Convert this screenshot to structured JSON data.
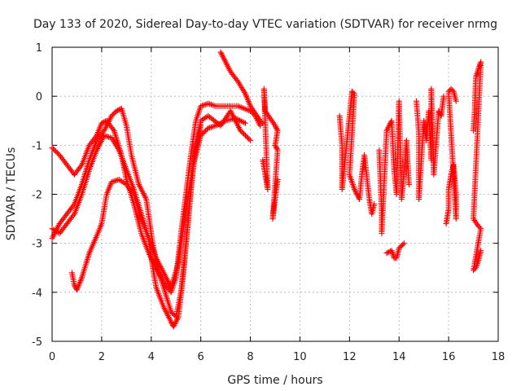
{
  "chart_data": {
    "type": "scatter",
    "title": "Day 133 of 2020, Sidereal Day-to-day VTEC variation (SDTVAR) for receiver nrmg",
    "xlabel": "GPS time / hours",
    "ylabel": "SDTVAR / TECUs",
    "xlim": [
      0,
      18
    ],
    "ylim": [
      -5,
      1
    ],
    "xticks": [
      "0",
      "2",
      "4",
      "6",
      "8",
      "10",
      "12",
      "14",
      "16",
      "18"
    ],
    "yticks": [
      "-5",
      "-4",
      "-3",
      "-2",
      "-1",
      "0",
      "1"
    ],
    "grid": true,
    "marker": "+",
    "color": "#ff0000",
    "series": [
      {
        "name": "track-1",
        "points": [
          [
            0,
            -1.05
          ],
          [
            0.3,
            -1.2
          ],
          [
            0.6,
            -1.4
          ],
          [
            0.9,
            -1.6
          ],
          [
            1.2,
            -1.4
          ],
          [
            1.5,
            -1.0
          ],
          [
            1.8,
            -0.8
          ],
          [
            2.0,
            -0.55
          ],
          [
            2.2,
            -0.5
          ],
          [
            2.5,
            -0.7
          ],
          [
            2.8,
            -1.2
          ],
          [
            3.0,
            -1.7
          ],
          [
            3.3,
            -2.2
          ],
          [
            3.6,
            -2.8
          ],
          [
            3.9,
            -3.2
          ],
          [
            4.2,
            -3.5
          ],
          [
            4.5,
            -3.8
          ],
          [
            4.8,
            -4.0
          ],
          [
            5.0,
            -3.7
          ],
          [
            5.2,
            -2.8
          ],
          [
            5.4,
            -2.0
          ],
          [
            5.6,
            -1.2
          ],
          [
            5.8,
            -0.5
          ],
          [
            6.0,
            -0.2
          ],
          [
            6.3,
            -0.15
          ],
          [
            6.6,
            -0.2
          ],
          [
            7.0,
            -0.2
          ],
          [
            7.5,
            -0.2
          ],
          [
            8.0,
            -0.3
          ],
          [
            8.2,
            -0.4
          ],
          [
            8.4,
            -0.6
          ]
        ]
      },
      {
        "name": "track-2",
        "points": [
          [
            0,
            -2.9
          ],
          [
            0.3,
            -2.6
          ],
          [
            0.6,
            -2.4
          ],
          [
            0.9,
            -2.2
          ],
          [
            1.2,
            -1.8
          ],
          [
            1.5,
            -1.3
          ],
          [
            1.8,
            -0.9
          ],
          [
            2.1,
            -0.7
          ],
          [
            2.4,
            -0.4
          ],
          [
            2.6,
            -0.3
          ],
          [
            2.8,
            -0.25
          ],
          [
            3.0,
            -0.6
          ],
          [
            3.2,
            -1.2
          ],
          [
            3.5,
            -1.8
          ],
          [
            3.8,
            -2.1
          ],
          [
            4.0,
            -2.8
          ],
          [
            4.2,
            -3.4
          ],
          [
            4.5,
            -3.9
          ],
          [
            4.8,
            -4.4
          ],
          [
            5.0,
            -4.5
          ],
          [
            5.2,
            -4.0
          ],
          [
            5.4,
            -3.0
          ],
          [
            5.6,
            -1.9
          ],
          [
            5.8,
            -1.0
          ],
          [
            6.0,
            -0.5
          ],
          [
            6.3,
            -0.4
          ],
          [
            6.8,
            -0.6
          ],
          [
            7.2,
            -0.3
          ],
          [
            7.6,
            -0.7
          ],
          [
            8.0,
            -0.9
          ]
        ]
      },
      {
        "name": "track-3",
        "points": [
          [
            0,
            -2.7
          ],
          [
            0.3,
            -2.8
          ],
          [
            0.6,
            -2.6
          ],
          [
            0.9,
            -2.4
          ],
          [
            1.2,
            -2.0
          ],
          [
            1.5,
            -1.5
          ],
          [
            1.8,
            -1.1
          ],
          [
            2.1,
            -0.8
          ],
          [
            2.4,
            -0.85
          ],
          [
            2.7,
            -1.1
          ],
          [
            3.0,
            -1.5
          ],
          [
            3.3,
            -1.9
          ],
          [
            3.6,
            -2.4
          ],
          [
            3.9,
            -2.9
          ],
          [
            4.2,
            -3.3
          ],
          [
            4.5,
            -3.6
          ],
          [
            4.8,
            -3.9
          ],
          [
            5.1,
            -3.4
          ],
          [
            5.4,
            -2.3
          ],
          [
            5.7,
            -1.4
          ],
          [
            6.0,
            -0.8
          ],
          [
            6.3,
            -0.65
          ],
          [
            6.6,
            -0.6
          ],
          [
            7.0,
            -0.5
          ],
          [
            7.4,
            -0.45
          ],
          [
            7.8,
            -0.55
          ]
        ]
      },
      {
        "name": "track-4",
        "points": [
          [
            0.8,
            -3.6
          ],
          [
            0.9,
            -3.85
          ],
          [
            1.0,
            -3.95
          ],
          [
            1.2,
            -3.7
          ],
          [
            1.5,
            -3.2
          ],
          [
            1.8,
            -2.85
          ],
          [
            2.0,
            -2.6
          ],
          [
            2.2,
            -2.0
          ],
          [
            2.4,
            -1.75
          ],
          [
            2.7,
            -1.7
          ],
          [
            3.0,
            -1.8
          ],
          [
            3.3,
            -2.0
          ],
          [
            3.6,
            -2.5
          ],
          [
            3.9,
            -2.9
          ],
          [
            4.0,
            -3.3
          ],
          [
            4.2,
            -3.9
          ],
          [
            4.5,
            -4.3
          ],
          [
            4.8,
            -4.6
          ],
          [
            4.9,
            -4.7
          ],
          [
            5.1,
            -4.5
          ],
          [
            5.3,
            -3.6
          ],
          [
            5.5,
            -2.5
          ],
          [
            5.7,
            -1.4
          ],
          [
            6.0,
            -0.6
          ]
        ]
      },
      {
        "name": "track-5",
        "points": [
          [
            6.8,
            0.9
          ],
          [
            7.0,
            0.7
          ],
          [
            7.2,
            0.5
          ],
          [
            7.5,
            0.3
          ],
          [
            7.8,
            0.05
          ],
          [
            8.0,
            -0.2
          ],
          [
            8.2,
            -0.35
          ],
          [
            8.4,
            -0.5
          ],
          [
            8.5,
            -0.55
          ]
        ]
      },
      {
        "name": "track-6",
        "points": [
          [
            8.5,
            -1.3
          ],
          [
            8.6,
            -1.6
          ],
          [
            8.7,
            -1.9
          ],
          [
            8.55,
            0.15
          ],
          [
            8.6,
            -0.3
          ],
          [
            9.0,
            -0.6
          ],
          [
            9.1,
            -0.7
          ],
          [
            9.0,
            -1.0
          ],
          [
            9.1,
            -1.1
          ],
          [
            8.9,
            -2.5
          ],
          [
            9.0,
            -2.1
          ],
          [
            9.1,
            -1.7
          ]
        ]
      },
      {
        "name": "track-7",
        "points": [
          [
            11.6,
            -0.4
          ],
          [
            11.7,
            -1.0
          ],
          [
            11.7,
            -1.4
          ],
          [
            11.7,
            -1.9
          ],
          [
            12.1,
            0.1
          ],
          [
            12.2,
            0.05
          ],
          [
            12.0,
            -1.6
          ],
          [
            12.2,
            -1.9
          ],
          [
            12.4,
            -2.1
          ],
          [
            12.5,
            -1.6
          ],
          [
            12.6,
            -1.2
          ],
          [
            12.8,
            -2.1
          ],
          [
            12.9,
            -2.4
          ],
          [
            13.0,
            -2.2
          ]
        ]
      },
      {
        "name": "track-8",
        "points": [
          [
            13.2,
            -1.1
          ],
          [
            13.3,
            -2.4
          ],
          [
            13.3,
            -2.8
          ],
          [
            13.5,
            -0.7
          ],
          [
            13.7,
            -0.5
          ],
          [
            13.8,
            -1.5
          ],
          [
            13.9,
            -2.0
          ],
          [
            14.0,
            -0.1
          ],
          [
            14.1,
            -2.1
          ],
          [
            14.2,
            -1.6
          ],
          [
            14.3,
            -0.9
          ],
          [
            14.4,
            -1.8
          ]
        ]
      },
      {
        "name": "track-9",
        "points": [
          [
            13.5,
            -3.2
          ],
          [
            13.7,
            -3.15
          ],
          [
            13.8,
            -3.3
          ],
          [
            13.9,
            -3.3
          ],
          [
            14.0,
            -3.1
          ],
          [
            14.2,
            -3.0
          ]
        ]
      },
      {
        "name": "track-10",
        "points": [
          [
            14.7,
            -0.1
          ],
          [
            14.8,
            -0.75
          ],
          [
            14.8,
            -2.1
          ],
          [
            15.0,
            -0.5
          ],
          [
            15.1,
            -0.9
          ],
          [
            15.2,
            -0.3
          ],
          [
            15.3,
            -1.3
          ],
          [
            15.3,
            0.15
          ],
          [
            15.4,
            -1.6
          ],
          [
            15.6,
            -0.3
          ],
          [
            15.7,
            -0.4
          ],
          [
            15.8,
            0.0
          ]
        ]
      },
      {
        "name": "track-11",
        "points": [
          [
            15.9,
            -2.6
          ],
          [
            16.0,
            -2.3
          ],
          [
            16.0,
            -1.9
          ],
          [
            16.1,
            -1.6
          ],
          [
            16.2,
            -1.4
          ],
          [
            16.3,
            -2.0
          ],
          [
            16.3,
            -2.5
          ],
          [
            16.0,
            0.1
          ],
          [
            16.1,
            0.15
          ],
          [
            16.2,
            0.1
          ],
          [
            16.3,
            -0.1
          ]
        ]
      },
      {
        "name": "track-12",
        "points": [
          [
            17.0,
            -0.7
          ],
          [
            17.05,
            -0.3
          ],
          [
            17.1,
            0.4
          ],
          [
            17.2,
            0.55
          ],
          [
            17.3,
            0.7
          ],
          [
            17.0,
            -2.5
          ],
          [
            17.2,
            -2.65
          ],
          [
            17.3,
            -2.7
          ],
          [
            17.0,
            -3.55
          ],
          [
            17.1,
            -3.5
          ],
          [
            17.2,
            -3.35
          ],
          [
            17.3,
            -3.15
          ]
        ]
      }
    ]
  }
}
